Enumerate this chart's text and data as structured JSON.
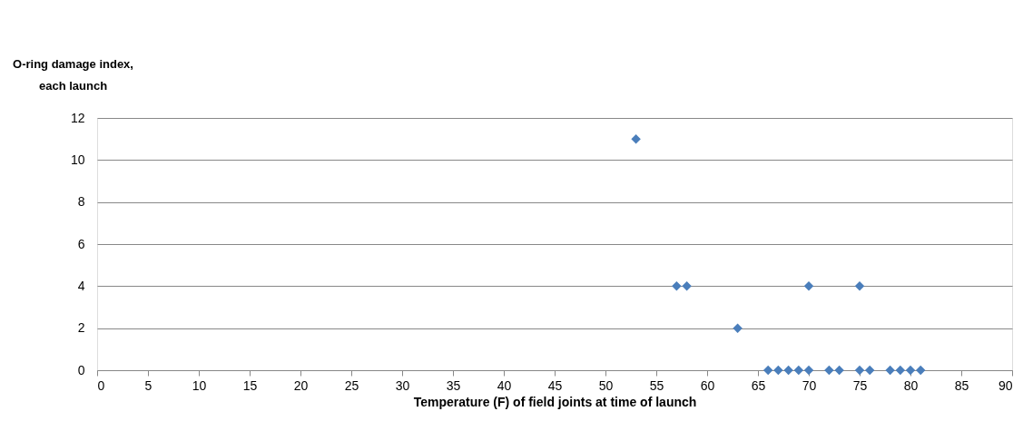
{
  "chart_data": {
    "type": "scatter",
    "xlabel": "Temperature (F) of field joints at time of launch",
    "ylabel": "O-ring damage index,\neach launch",
    "x": [
      53,
      57,
      58,
      63,
      70,
      75,
      66,
      67,
      68,
      69,
      70,
      72,
      73,
      75,
      76,
      78,
      79,
      80,
      81
    ],
    "series": [
      {
        "color": "#4a7ebb",
        "values": [
          11,
          4,
          4,
          2,
          4,
          4,
          0,
          0,
          0,
          0,
          0,
          0,
          0,
          0,
          0,
          0,
          0,
          0,
          0
        ]
      }
    ],
    "xlim": [
      0,
      90
    ],
    "xticks": [
      0,
      5,
      10,
      15,
      20,
      25,
      30,
      35,
      40,
      45,
      50,
      55,
      60,
      65,
      70,
      75,
      80,
      85,
      90
    ],
    "ylim": [
      0,
      12
    ],
    "yticks": [
      0,
      2,
      4,
      6,
      8,
      10,
      12
    ],
    "grid": "y",
    "marker": "diamond"
  }
}
